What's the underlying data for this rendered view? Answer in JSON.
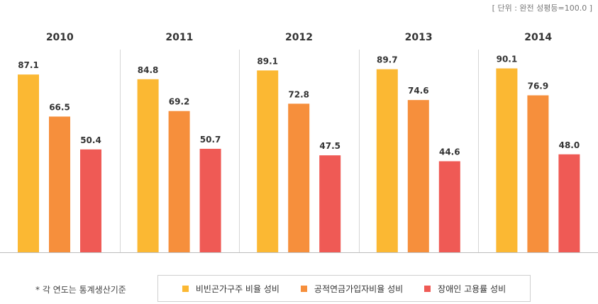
{
  "unit_label": "[ 단위 : 완전 성평등=100.0 ]",
  "footnote": "* 각 연도는 통계생산기준",
  "chart_data": {
    "type": "bar",
    "categories": [
      "2010",
      "2011",
      "2012",
      "2013",
      "2014"
    ],
    "ylim": [
      0,
      100
    ],
    "grid": false,
    "legend_position": "bottom",
    "series": [
      {
        "name": "비빈곤가구주 비율 성비",
        "color": "#FBB833",
        "values": [
          87.1,
          84.8,
          89.1,
          89.7,
          90.1
        ]
      },
      {
        "name": "공적연금가입자비율 성비",
        "color": "#F68F3C",
        "values": [
          66.5,
          69.2,
          72.8,
          74.6,
          76.9
        ]
      },
      {
        "name": "장애인 고용률 성비",
        "color": "#EF5A55",
        "values": [
          50.4,
          50.7,
          47.5,
          44.6,
          48.0
        ]
      }
    ]
  }
}
